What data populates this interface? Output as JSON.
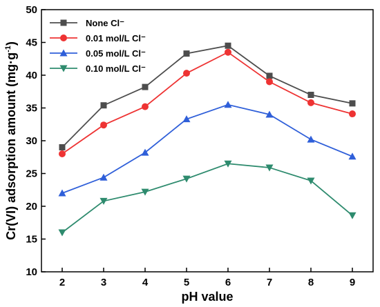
{
  "chart_data": {
    "type": "line",
    "xlabel": "pH value",
    "ylabel": "Cr(VI) adsorption amount (mg·g",
    "ylabel_sup": "-1",
    "ylabel_end": ")",
    "x": [
      2,
      3,
      4,
      5,
      6,
      7,
      8,
      9
    ],
    "xlim": [
      1.5,
      9.5
    ],
    "ylim": [
      10,
      50
    ],
    "xticks": [
      "2",
      "3",
      "4",
      "5",
      "6",
      "7",
      "8",
      "9"
    ],
    "yticks": [
      "10",
      "15",
      "20",
      "25",
      "30",
      "35",
      "40",
      "45",
      "50"
    ],
    "grid": false,
    "legend_position": "top-left",
    "series": [
      {
        "name": "None Cl⁻",
        "color": "#4d4d4d",
        "marker": "square",
        "values": [
          29.0,
          35.4,
          38.2,
          43.3,
          44.5,
          39.9,
          37.0,
          35.7
        ]
      },
      {
        "name": "0.01 mol/L Cl⁻",
        "color": "#ee3333",
        "marker": "circle",
        "values": [
          28.0,
          32.4,
          35.2,
          40.3,
          43.5,
          39.0,
          35.8,
          34.1
        ]
      },
      {
        "name": "0.05 mol/L Cl⁻",
        "color": "#2f5fd9",
        "marker": "triangle-up",
        "values": [
          22.0,
          24.4,
          28.2,
          33.3,
          35.5,
          34.0,
          30.2,
          27.6
        ]
      },
      {
        "name": "0.10 mol/L Cl⁻",
        "color": "#2e8b6e",
        "marker": "triangle-down",
        "values": [
          16.0,
          20.8,
          22.2,
          24.2,
          26.5,
          25.9,
          23.9,
          18.6
        ]
      }
    ]
  }
}
